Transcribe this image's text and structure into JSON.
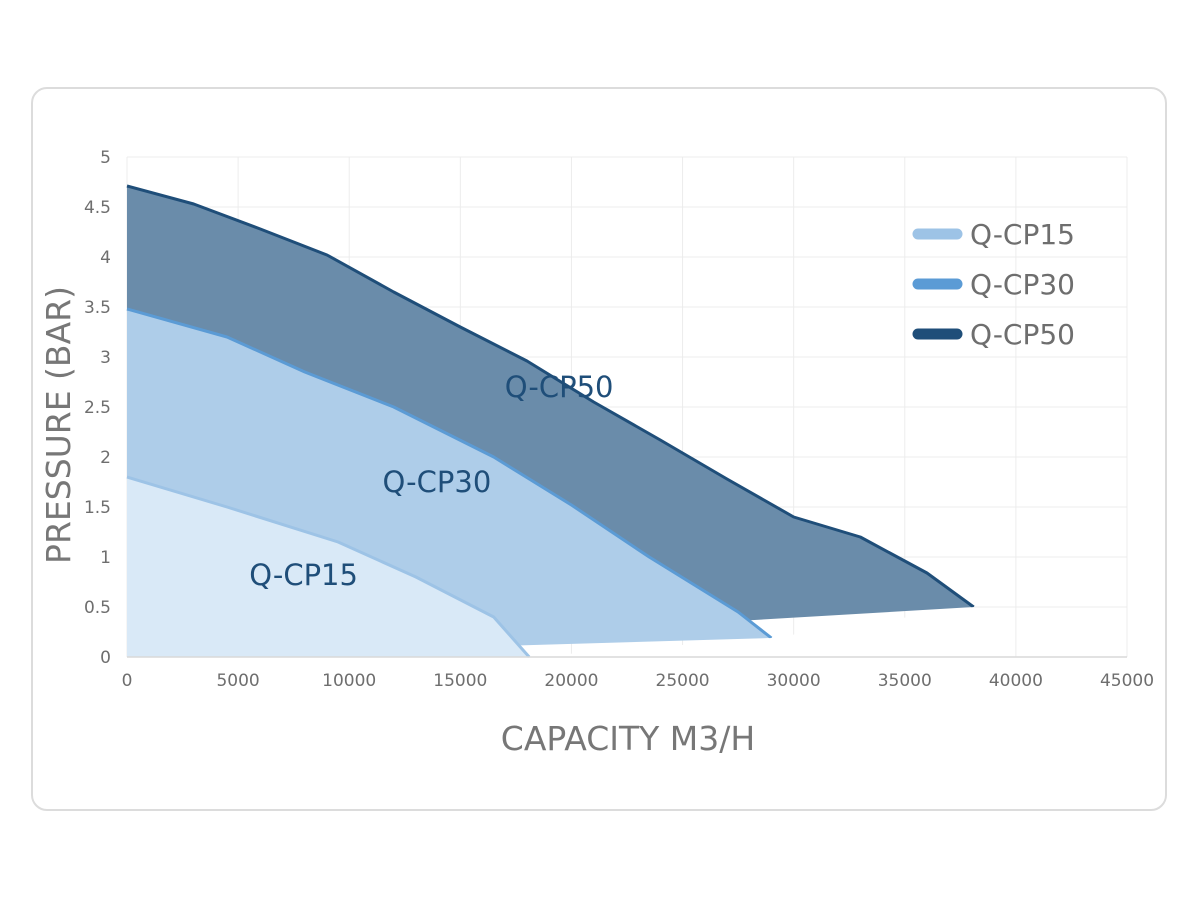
{
  "chart_data": {
    "type": "area",
    "title": "",
    "xlabel": "CAPACITY M3/H",
    "ylabel": "PRESSURE (BAR)",
    "xlim": [
      0,
      45000
    ],
    "ylim": [
      0,
      5
    ],
    "x_ticks": [
      0,
      5000,
      10000,
      15000,
      20000,
      25000,
      30000,
      35000,
      40000,
      45000
    ],
    "y_ticks": [
      0,
      0.5,
      1,
      1.5,
      2,
      2.5,
      3,
      3.5,
      4,
      4.5,
      5
    ],
    "x_tick_labels": [
      "0",
      "5000",
      "10000",
      "15000",
      "20000",
      "25000",
      "30000",
      "35000",
      "40000",
      "45000"
    ],
    "y_tick_labels": [
      "0",
      "0.5",
      "1",
      "1.5",
      "2",
      "2.5",
      "3",
      "3.5",
      "4",
      "4.5",
      "5"
    ],
    "grid": true,
    "legend_position": "top-right",
    "series": [
      {
        "name": "Q-CP50",
        "line_color": "#1f4e79",
        "fill_color": "#6a8caa",
        "points": [
          [
            0,
            4.71
          ],
          [
            3000,
            4.53
          ],
          [
            6000,
            4.28
          ],
          [
            9000,
            4.02
          ],
          [
            12000,
            3.65
          ],
          [
            15000,
            3.3
          ],
          [
            18000,
            2.96
          ],
          [
            21000,
            2.55
          ],
          [
            24000,
            2.17
          ],
          [
            27000,
            1.78
          ],
          [
            30000,
            1.4
          ],
          [
            33000,
            1.2
          ],
          [
            36000,
            0.84
          ],
          [
            38100,
            0.5
          ]
        ],
        "in_area_label": "Q-CP50",
        "label_at": [
          17000,
          2.6
        ]
      },
      {
        "name": "Q-CP30",
        "line_color": "#5b9bd5",
        "fill_color": "#aecde9",
        "points": [
          [
            0,
            3.48
          ],
          [
            4500,
            3.2
          ],
          [
            8000,
            2.85
          ],
          [
            12000,
            2.5
          ],
          [
            16500,
            2.0
          ],
          [
            20000,
            1.52
          ],
          [
            23500,
            1.0
          ],
          [
            27500,
            0.45
          ],
          [
            29000,
            0.19
          ]
        ],
        "in_area_label": "Q-CP30",
        "label_at": [
          11500,
          1.65
        ]
      },
      {
        "name": "Q-CP15",
        "line_color": "#9dc3e6",
        "fill_color": "#d9e9f7",
        "points": [
          [
            0,
            1.8
          ],
          [
            4500,
            1.5
          ],
          [
            9500,
            1.15
          ],
          [
            13000,
            0.8
          ],
          [
            16500,
            0.4
          ],
          [
            18100,
            0
          ]
        ],
        "in_area_label": "Q-CP15",
        "label_at": [
          5500,
          0.72
        ]
      }
    ],
    "legend": [
      {
        "label": "Q-CP15",
        "color": "#9dc3e6"
      },
      {
        "label": "Q-CP30",
        "color": "#5b9bd5"
      },
      {
        "label": "Q-CP50",
        "color": "#1f4e79"
      }
    ]
  }
}
